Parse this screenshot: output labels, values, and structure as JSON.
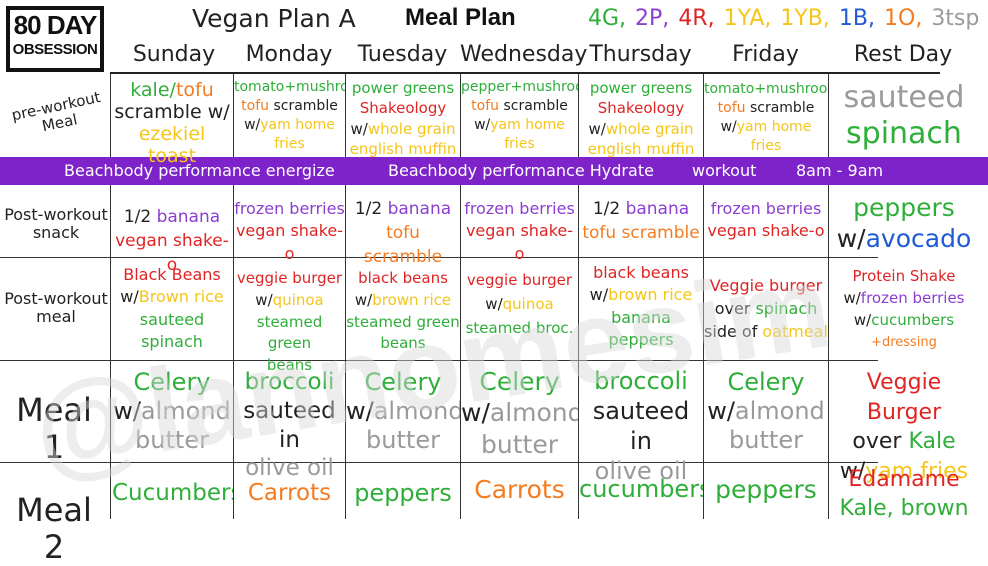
{
  "header": {
    "logo_line1": "80 DAY",
    "logo_line2": "OBSESSION",
    "plan_title": "Vegan Plan A",
    "meal_plan_title": "Meal Plan",
    "legend": [
      "4G,",
      "2P,",
      "4R,",
      "1YA,",
      "1YB,",
      "1B,",
      "1O,",
      "3tsp"
    ],
    "legend_colors": [
      "#2fae39",
      "#8b3fd1",
      "#e02424",
      "#f5c518",
      "#f5c518",
      "#1f5bd6",
      "#f47b20",
      "#9a9a9a"
    ]
  },
  "days": [
    "Sunday",
    "Monday",
    "Tuesday",
    "Wednesday",
    "Thursday",
    "Friday",
    "Rest Day"
  ],
  "row_labels": {
    "pre_workout": "pre-workout Meal",
    "post_snack": "Post-workout snack",
    "post_meal": "Post-workout meal",
    "meal1": "Meal 1",
    "meal2": "Meal 2"
  },
  "banner": {
    "energize": "Beachbody performance energize",
    "hydrate": "Beachbody performance Hydrate",
    "workout": "workout",
    "time": "8am - 9am"
  },
  "pre_workout": [
    [
      "kale/",
      "tofu",
      "scramble w/",
      "ezekiel toast"
    ],
    [
      "tomato+mushroom",
      "tofu",
      " scramble",
      "w/",
      "yam home",
      "fries"
    ],
    [
      "power greens",
      "Shakeology",
      "w/",
      "whole grain",
      "english muffin"
    ],
    [
      "pepper+mushroom",
      "tofu",
      " scramble",
      "w/",
      "yam home",
      "fries"
    ],
    [
      "power greens",
      "Shakeology",
      "w/",
      "whole grain",
      "english muffin"
    ],
    [
      "tomato+mushroom",
      "tofu",
      " scramble",
      "w/",
      "yam home",
      "fries"
    ],
    [
      "sauteed",
      "spinach"
    ]
  ],
  "post_snack": [
    [
      "1/2 ",
      "banana",
      "vegan shake-o"
    ],
    [
      "frozen berries",
      "vegan shake-o"
    ],
    [
      "1/2 ",
      "banana",
      "tofu scramble"
    ],
    [
      "frozen berries",
      "vegan shake-o"
    ],
    [
      "1/2 ",
      "banana",
      "tofu scramble"
    ],
    [
      "frozen berries",
      "vegan shake-o"
    ],
    [
      "peppers",
      "w/",
      "avocado"
    ]
  ],
  "post_meal": [
    [
      "Black Beans",
      "w/",
      "Brown rice",
      "sauteed",
      "spinach"
    ],
    [
      "veggie burger",
      "w/",
      "quinoa",
      "steamed green",
      "beans"
    ],
    [
      "black beans",
      "w/",
      "brown rice",
      "steamed green",
      "beans"
    ],
    [
      "veggie burger",
      "w/",
      "quinoa",
      "steamed broc."
    ],
    [
      "black beans",
      "w/",
      "brown rice",
      "banana",
      "peppers"
    ],
    [
      "Veggie burger",
      "over ",
      "spinach",
      "side of ",
      "oatmeal"
    ],
    [
      "Protein Shake",
      "w/",
      "frozen berries",
      "w/",
      "cucumbers",
      "+dressing"
    ]
  ],
  "meal1": [
    [
      "Celery",
      "w/",
      "almond",
      "butter"
    ],
    [
      "broccoli",
      "sauteed in",
      "olive oil"
    ],
    [
      "Celery",
      "w/",
      "almond",
      "butter"
    ],
    [
      "Celery",
      "w/",
      "almond",
      "butter"
    ],
    [
      "broccoli",
      "sauteed in",
      "olive oil"
    ],
    [
      "Celery",
      "w/",
      "almond",
      "butter"
    ],
    [
      "Veggie Burger",
      "over ",
      "Kale",
      "w/",
      "yam fries"
    ]
  ],
  "meal2": [
    [
      "Cucumbers"
    ],
    [
      "Carrots"
    ],
    [
      "peppers"
    ],
    [
      "Carrots"
    ],
    [
      "cucumbers"
    ],
    [
      "peppers"
    ],
    [
      "Edamame",
      "Kale, brown"
    ]
  ],
  "watermark": "@lannomesim"
}
